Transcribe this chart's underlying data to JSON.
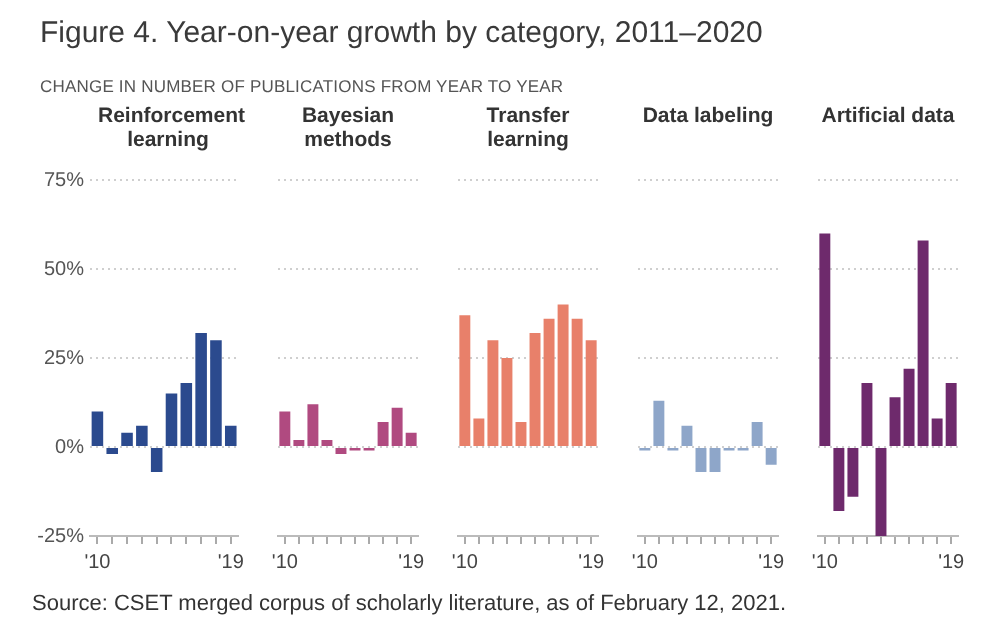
{
  "chart_data": [
    {
      "type": "other",
      "title": "Figure 4. Year-on-year growth by category, 2011–2020",
      "subtitle": "CHANGE IN NUMBER OF PUBLICATIONS FROM YEAR TO YEAR",
      "annotations": [
        "Source: CSET merged corpus of scholarly literature, as of February 12, 2021."
      ]
    },
    {
      "type": "bar",
      "title": "Reinforcement learning",
      "categories": [
        "'10",
        null,
        null,
        null,
        null,
        null,
        null,
        null,
        null,
        "'19"
      ],
      "values": [
        10,
        -2,
        4,
        6,
        -7,
        15,
        18,
        32,
        30,
        6
      ],
      "color": "#2b4a8e",
      "ylim": [
        -25,
        75
      ],
      "yticks": [
        {
          "value": -25,
          "label": "-25%"
        },
        {
          "value": 0,
          "label": "0%"
        },
        {
          "value": 25,
          "label": "25%"
        },
        {
          "value": 50,
          "label": "50%"
        },
        {
          "value": 75,
          "label": "75%"
        }
      ],
      "grid": "y"
    },
    {
      "type": "bar",
      "title": "Bayesian methods",
      "categories": [
        "'10",
        null,
        null,
        null,
        null,
        null,
        null,
        null,
        null,
        "'19"
      ],
      "values": [
        10,
        2,
        12,
        2,
        -2,
        -1,
        -1,
        7,
        11,
        4
      ],
      "color": "#b04a80",
      "ylim": [
        -25,
        75
      ],
      "yticks": [
        -25,
        0,
        25,
        50,
        75
      ],
      "grid": "y",
      "tick_labels": "x"
    },
    {
      "type": "bar",
      "title": "Transfer learning",
      "categories": [
        "'10",
        null,
        null,
        null,
        null,
        null,
        null,
        null,
        null,
        "'19"
      ],
      "values": [
        37,
        8,
        30,
        25,
        7,
        32,
        36,
        40,
        36,
        30
      ],
      "color": "#e8806a",
      "ylim": [
        -25,
        75
      ],
      "yticks": [
        -25,
        0,
        25,
        50,
        75
      ],
      "grid": "y",
      "tick_labels": "x"
    },
    {
      "type": "bar",
      "title": "Data labeling",
      "categories": [
        "'10",
        null,
        null,
        null,
        null,
        null,
        null,
        null,
        null,
        "'19"
      ],
      "values": [
        -1,
        13,
        -1,
        6,
        -7,
        -7,
        -1,
        -1,
        7,
        -5
      ],
      "color": "#8ea6c9",
      "ylim": [
        -25,
        75
      ],
      "yticks": [
        -25,
        0,
        25,
        50,
        75
      ],
      "grid": "y",
      "tick_labels": "x"
    },
    {
      "type": "bar",
      "title": "Artificial data",
      "categories": [
        "'10",
        null,
        null,
        null,
        null,
        null,
        null,
        null,
        null,
        "'19"
      ],
      "values": [
        60,
        -18,
        -14,
        18,
        -25,
        14,
        22,
        58,
        8,
        18
      ],
      "color": "#6e2a6c",
      "ylim": [
        -25,
        75
      ],
      "yticks": [
        -25,
        0,
        25,
        50,
        75
      ],
      "grid": "y",
      "tick_labels": "x"
    }
  ]
}
